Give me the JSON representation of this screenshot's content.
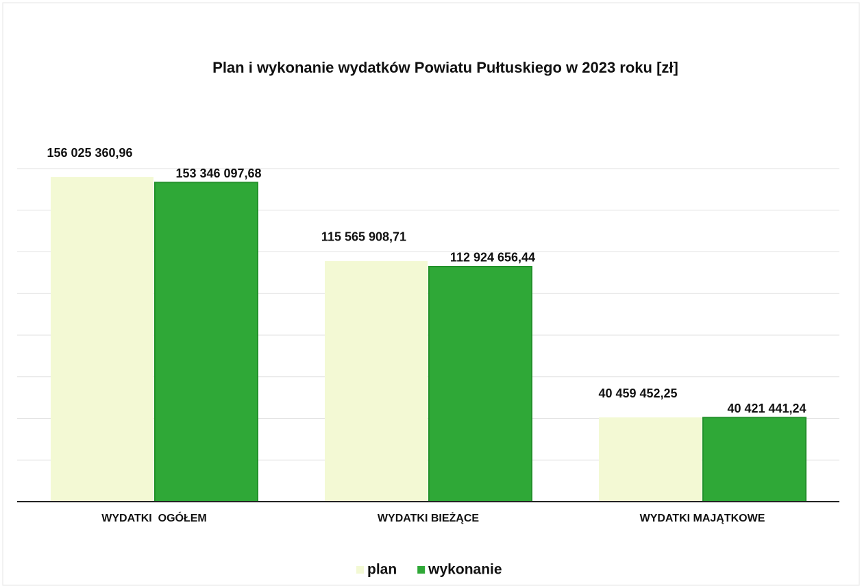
{
  "chart_data": {
    "type": "bar",
    "title": "Plan i wykonanie wydatków Powiatu Pułtuskiego w 2023 roku [zł]",
    "categories": [
      "WYDATKI  OGÓŁEM",
      "WYDATKI BIEŻĄCE",
      "WYDATKI MAJĄTKOWE"
    ],
    "series": [
      {
        "name": "plan",
        "color": "#f3f9d4",
        "values": [
          156025360.96,
          115565908.71,
          40459452.25
        ],
        "value_labels": [
          "156 025 360,96",
          "115 565 908,71",
          "40 459 452,25"
        ]
      },
      {
        "name": "wykonanie",
        "color": "#2fa837",
        "values": [
          153346097.68,
          112924656.44,
          40421441.24
        ],
        "value_labels": [
          "153 346 097,68",
          "112 924 656,44",
          "40 421 441,24"
        ]
      }
    ],
    "ylim": [
      0,
      160000000
    ],
    "yticks": [
      0,
      20000000,
      40000000,
      60000000,
      80000000,
      100000000,
      120000000,
      140000000,
      160000000
    ],
    "grid": true,
    "legend": "bottom"
  }
}
